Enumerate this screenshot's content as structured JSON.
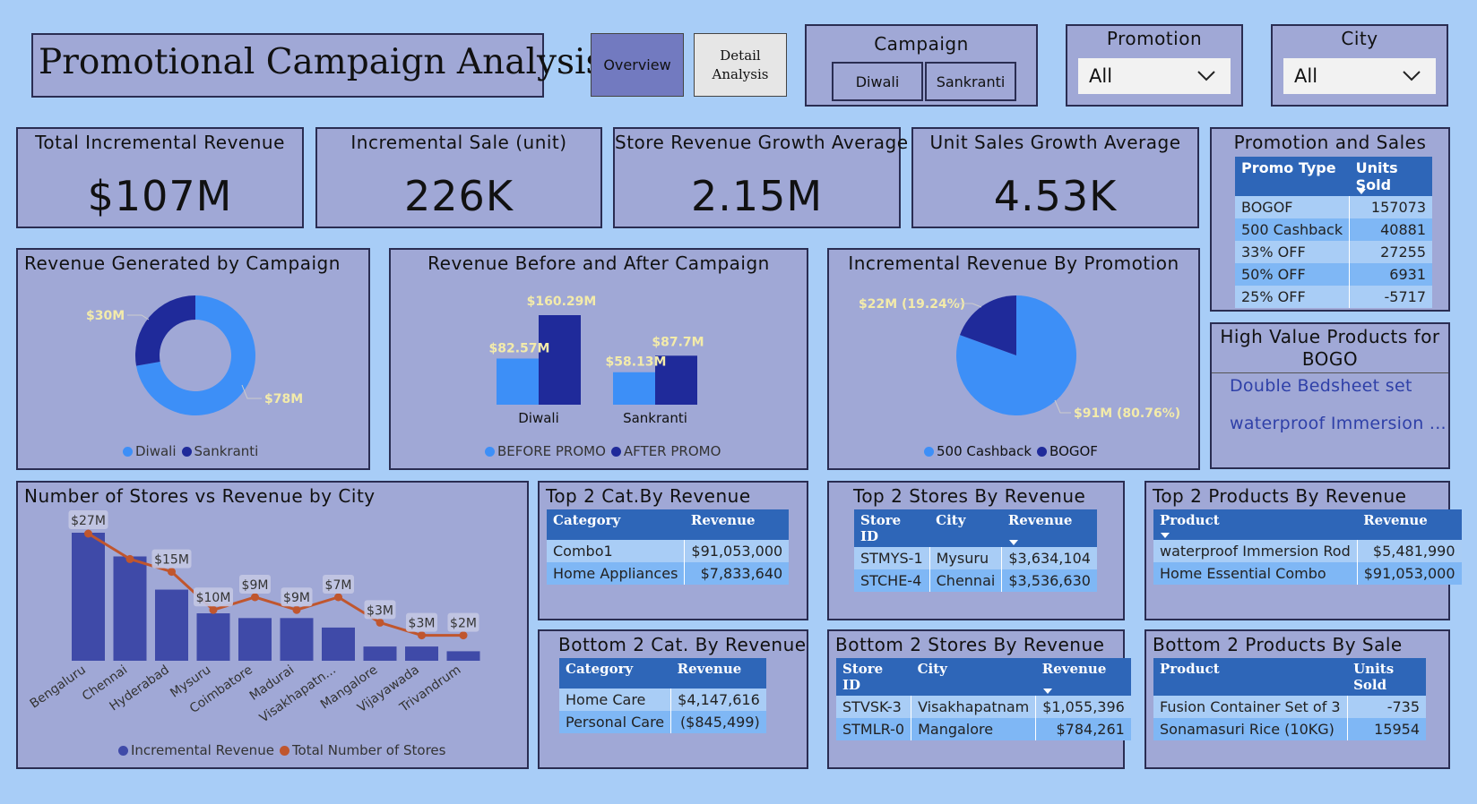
{
  "header": {
    "title": "Promotional Campaign Analysis",
    "nav_overview": "Overview",
    "nav_detail": "Detail\nAnalysis"
  },
  "slicers": {
    "campaign": {
      "title": "Campaign",
      "options": [
        "Diwali",
        "Sankranti"
      ]
    },
    "promotion": {
      "title": "Promotion",
      "selected": "All"
    },
    "city": {
      "title": "City",
      "selected": "All"
    }
  },
  "kpis": [
    {
      "label": "Total Incremental Revenue",
      "value": "$107M"
    },
    {
      "label": "Incremental Sale (unit)",
      "value": "226K"
    },
    {
      "label": "Store Revenue Growth Average",
      "value": "2.15M"
    },
    {
      "label": "Unit Sales Growth Average",
      "value": "4.53K"
    }
  ],
  "promotion_sales": {
    "title": "Promotion and Sales",
    "headers": [
      "Promo Type",
      "Units Sold"
    ],
    "rows": [
      [
        "BOGOF",
        "157073"
      ],
      [
        "500 Cashback",
        "40881"
      ],
      [
        "33% OFF",
        "27255"
      ],
      [
        "50% OFF",
        "6931"
      ],
      [
        "25% OFF",
        "-5717"
      ]
    ]
  },
  "high_value": {
    "title": "High Value Products for BOGO",
    "items": [
      "Double Bedsheet set",
      "waterproof Immersion ..."
    ]
  },
  "revenue_by_campaign": {
    "title": "Revenue Generated by Campaign",
    "labels": [
      "$30M",
      "$78M"
    ],
    "legend": [
      "Diwali",
      "Sankranti"
    ]
  },
  "before_after": {
    "title": "Revenue Before and After Campaign",
    "labels": [
      "$82.57M",
      "$160.29M",
      "$58.13M",
      "$87.7M"
    ],
    "categories": [
      "Diwali",
      "Sankranti"
    ],
    "legend": [
      "BEFORE PROMO",
      "AFTER PROMO"
    ]
  },
  "incr_by_promotion": {
    "title": "Incremental Revenue By Promotion",
    "labels": [
      "$22M (19.24%)",
      "$91M (80.76%)"
    ],
    "legend": [
      "500 Cashback",
      "BOGOF"
    ]
  },
  "stores_vs_revenue": {
    "title": "Number of Stores vs Revenue by City",
    "legend": [
      "Incremental Revenue",
      "Total Number of Stores"
    ]
  },
  "top_cat": {
    "title": "Top 2 Cat.By Revenue",
    "headers": [
      "Category",
      "Revenue"
    ],
    "rows": [
      [
        "Combo1",
        "$91,053,000"
      ],
      [
        "Home Appliances",
        "$7,833,640"
      ]
    ]
  },
  "top_stores": {
    "title": "Top 2 Stores By Revenue",
    "headers": [
      "Store ID",
      "City",
      "Revenue"
    ],
    "rows": [
      [
        "STMYS-1",
        "Mysuru",
        "$3,634,104"
      ],
      [
        "STCHE-4",
        "Chennai",
        "$3,536,630"
      ]
    ]
  },
  "top_products": {
    "title": "Top 2 Products By Revenue",
    "headers": [
      "Product",
      "Revenue"
    ],
    "rows": [
      [
        "waterproof Immersion Rod",
        "$5,481,990"
      ],
      [
        "Home Essential Combo",
        "$91,053,000"
      ]
    ]
  },
  "bottom_cat": {
    "title": "Bottom 2 Cat. By Revenue",
    "headers": [
      "Category",
      "Revenue"
    ],
    "rows": [
      [
        "Home Care",
        "$4,147,616"
      ],
      [
        "Personal Care",
        "($845,499)"
      ]
    ]
  },
  "bottom_stores": {
    "title": "Bottom 2 Stores By Revenue",
    "headers": [
      "Store ID",
      "City",
      "Revenue"
    ],
    "rows": [
      [
        "STVSK-3",
        "Visakhapatnam",
        "$1,055,396"
      ],
      [
        "STMLR-0",
        "Mangalore",
        "$784,261"
      ]
    ]
  },
  "bottom_products": {
    "title": "Bottom 2 Products By Sale",
    "headers": [
      "Product",
      "Units Sold"
    ],
    "rows": [
      [
        "Fusion Container Set of 3",
        "-735"
      ],
      [
        "Sonamasuri Rice (10KG)",
        "15954"
      ]
    ]
  },
  "colors": {
    "background": "#a8cdf7",
    "card": "#a0a8d6",
    "light_blue": "#3d8ff7",
    "dark_blue": "#1f2a9a",
    "bar": "#3f4aa8",
    "line": "#c0562e",
    "label": "#f3ebaa"
  },
  "chart_data": [
    {
      "type": "pie",
      "title": "Revenue Generated by Campaign",
      "donut": true,
      "categories": [
        "Diwali",
        "Sankranti"
      ],
      "values": [
        30,
        78
      ],
      "unit": "$M"
    },
    {
      "type": "bar",
      "title": "Revenue Before and After Campaign",
      "categories": [
        "Diwali",
        "Sankranti"
      ],
      "series": [
        {
          "name": "BEFORE PROMO",
          "values": [
            82.57,
            58.13
          ]
        },
        {
          "name": "AFTER PROMO",
          "values": [
            160.29,
            87.7
          ]
        }
      ],
      "unit": "$M"
    },
    {
      "type": "pie",
      "title": "Incremental Revenue By Promotion",
      "categories": [
        "500 Cashback",
        "BOGOF"
      ],
      "values": [
        22,
        91
      ],
      "percentages": [
        19.24,
        80.76
      ],
      "unit": "$M"
    },
    {
      "type": "bar",
      "title": "Number of Stores vs Revenue by City",
      "categories": [
        "Bengaluru",
        "Chennai",
        "Hyderabad",
        "Mysuru",
        "Coimbatore",
        "Madurai",
        "Visakhapatn...",
        "Mangalore",
        "Vijayawada",
        "Trivandrum"
      ],
      "series": [
        {
          "name": "Incremental Revenue",
          "values": [
            27,
            22,
            15,
            10,
            9,
            9,
            7,
            3,
            3,
            2
          ],
          "data_labels": [
            "$27M",
            "",
            "$15M",
            "$10M",
            "$9M",
            "$9M",
            "$7M",
            "$3M",
            "$3M",
            "$2M"
          ]
        },
        {
          "name": "Total Number of Stores",
          "type": "line",
          "values": [
            10,
            8,
            7,
            4,
            5,
            4,
            5,
            3,
            2,
            2
          ]
        }
      ],
      "legend": "bottom"
    }
  ]
}
